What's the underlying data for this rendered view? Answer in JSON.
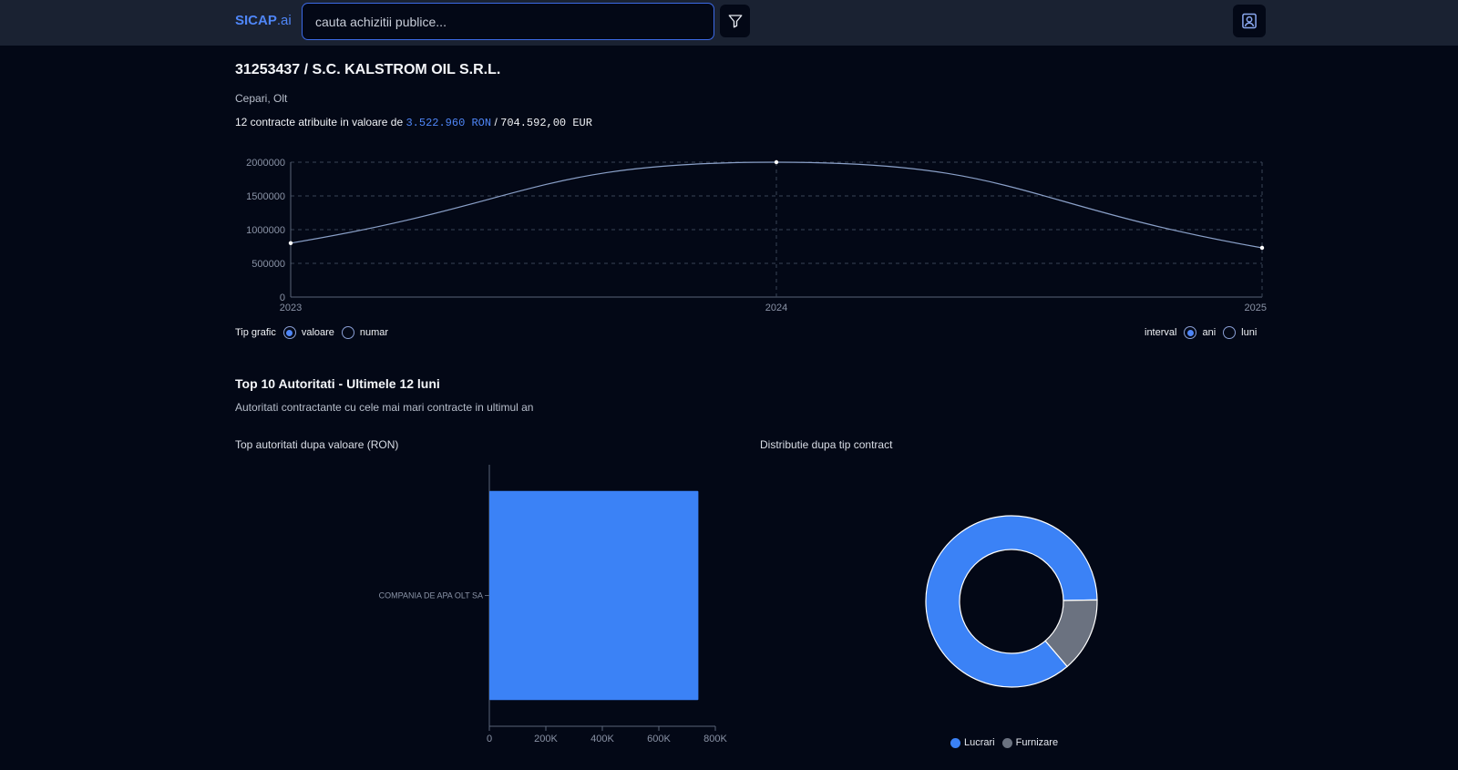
{
  "header": {
    "logo_main": "SICAP",
    "logo_suffix": ".ai",
    "search_placeholder": "cauta achizitii publice..."
  },
  "company": {
    "title": "31253437 / S.C. KALSTROM OIL S.R.L.",
    "location": "Cepari, Olt",
    "summary_prefix": "12 contracte atribuite in valoare de",
    "value_ron": "3.522.960 RON",
    "separator": "/",
    "value_eur": "704.592,00 EUR"
  },
  "controls": {
    "chart_type_label": "Tip grafic",
    "option_value": "valoare",
    "option_count": "numar",
    "interval_label": "interval",
    "option_years": "ani",
    "option_months": "luni",
    "selected_chart_type": "valoare",
    "selected_interval": "ani"
  },
  "top_section": {
    "title": "Top 10 Autoritati - Ultimele 12 luni",
    "subtitle": "Autoritati contractante cu cele mai mari contracte in ultimul an",
    "bar_chart_title": "Top autoritati dupa valoare (RON)",
    "donut_chart_title": "Distributie dupa tip contract"
  },
  "colors": {
    "accent": "#4f86f7",
    "bar": "#3b82f6",
    "donut_lucrari": "#3b82f6",
    "donut_furnizare": "#6b7280",
    "line": "#8aa0c8"
  },
  "chart_data": [
    {
      "type": "line",
      "x": [
        "2023",
        "2024",
        "2025"
      ],
      "series": [
        {
          "values": [
            800000,
            2000000,
            730000
          ]
        }
      ],
      "ylim": [
        0,
        2000000
      ],
      "yticks": [
        0,
        500000,
        1000000,
        1500000,
        2000000
      ],
      "grid": true
    },
    {
      "type": "bar",
      "orientation": "horizontal",
      "categories": [
        "COMPANIA DE APA OLT SA"
      ],
      "values": [
        740000
      ],
      "xlim": [
        0,
        800000
      ],
      "xticks": [
        "0",
        "200K",
        "400K",
        "600K",
        "800K"
      ]
    },
    {
      "type": "pie",
      "categories": [
        "Lucrari",
        "Furnizare"
      ],
      "values": [
        86,
        14
      ],
      "legend": "bottom"
    }
  ]
}
